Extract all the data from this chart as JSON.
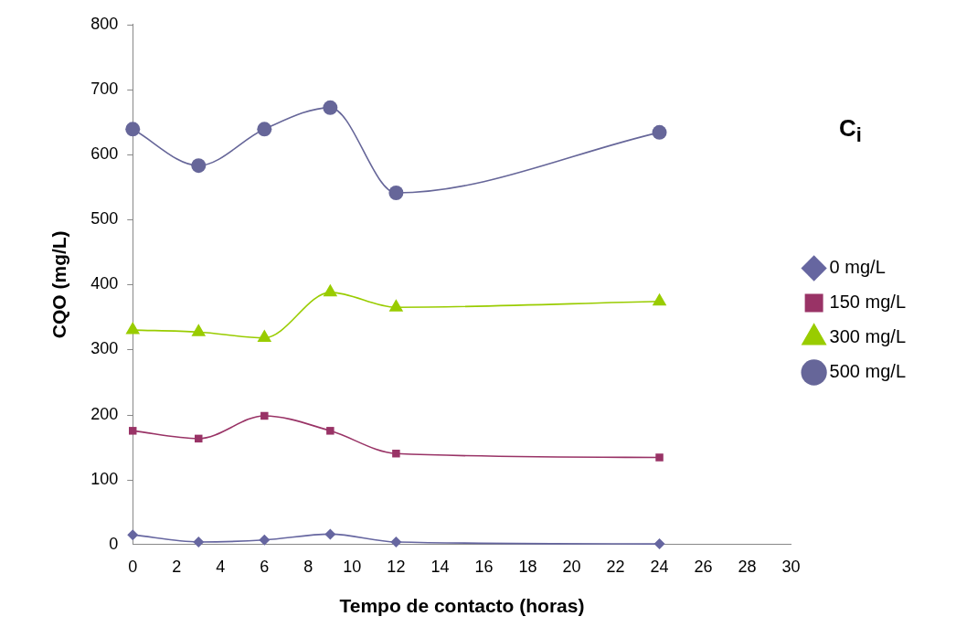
{
  "chart_data": {
    "type": "line",
    "xlabel": "Tempo de contacto (horas)",
    "ylabel": "CQO (mg/L)",
    "legend_title": "C$_{i}$",
    "legend": "right",
    "grid": false,
    "line_style": "solid",
    "x": [
      0,
      3,
      6,
      9,
      12,
      24
    ],
    "xlim": [
      0,
      30
    ],
    "xticks": [
      0,
      2,
      4,
      6,
      8,
      10,
      12,
      14,
      16,
      18,
      20,
      22,
      24,
      26,
      28,
      30
    ],
    "ylim": [
      0,
      800
    ],
    "yticks": [
      0,
      100,
      200,
      300,
      400,
      500,
      600,
      700,
      800
    ],
    "series": [
      {
        "name": "0 mg/L",
        "color": "#6666a0",
        "marker": "diamond",
        "values": [
          15,
          4,
          7,
          16,
          4,
          1
        ]
      },
      {
        "name": "150 mg/L",
        "color": "#993366",
        "marker": "square",
        "values": [
          175,
          163,
          198,
          175,
          140,
          134
        ]
      },
      {
        "name": "300 mg/L",
        "color": "#99cc00",
        "marker": "triangle",
        "values": [
          330,
          327,
          318,
          388,
          365,
          374
        ]
      },
      {
        "name": "500 mg/L",
        "color": "#666699",
        "marker": "circle",
        "values": [
          639,
          583,
          639,
          672,
          541,
          634
        ]
      }
    ]
  }
}
